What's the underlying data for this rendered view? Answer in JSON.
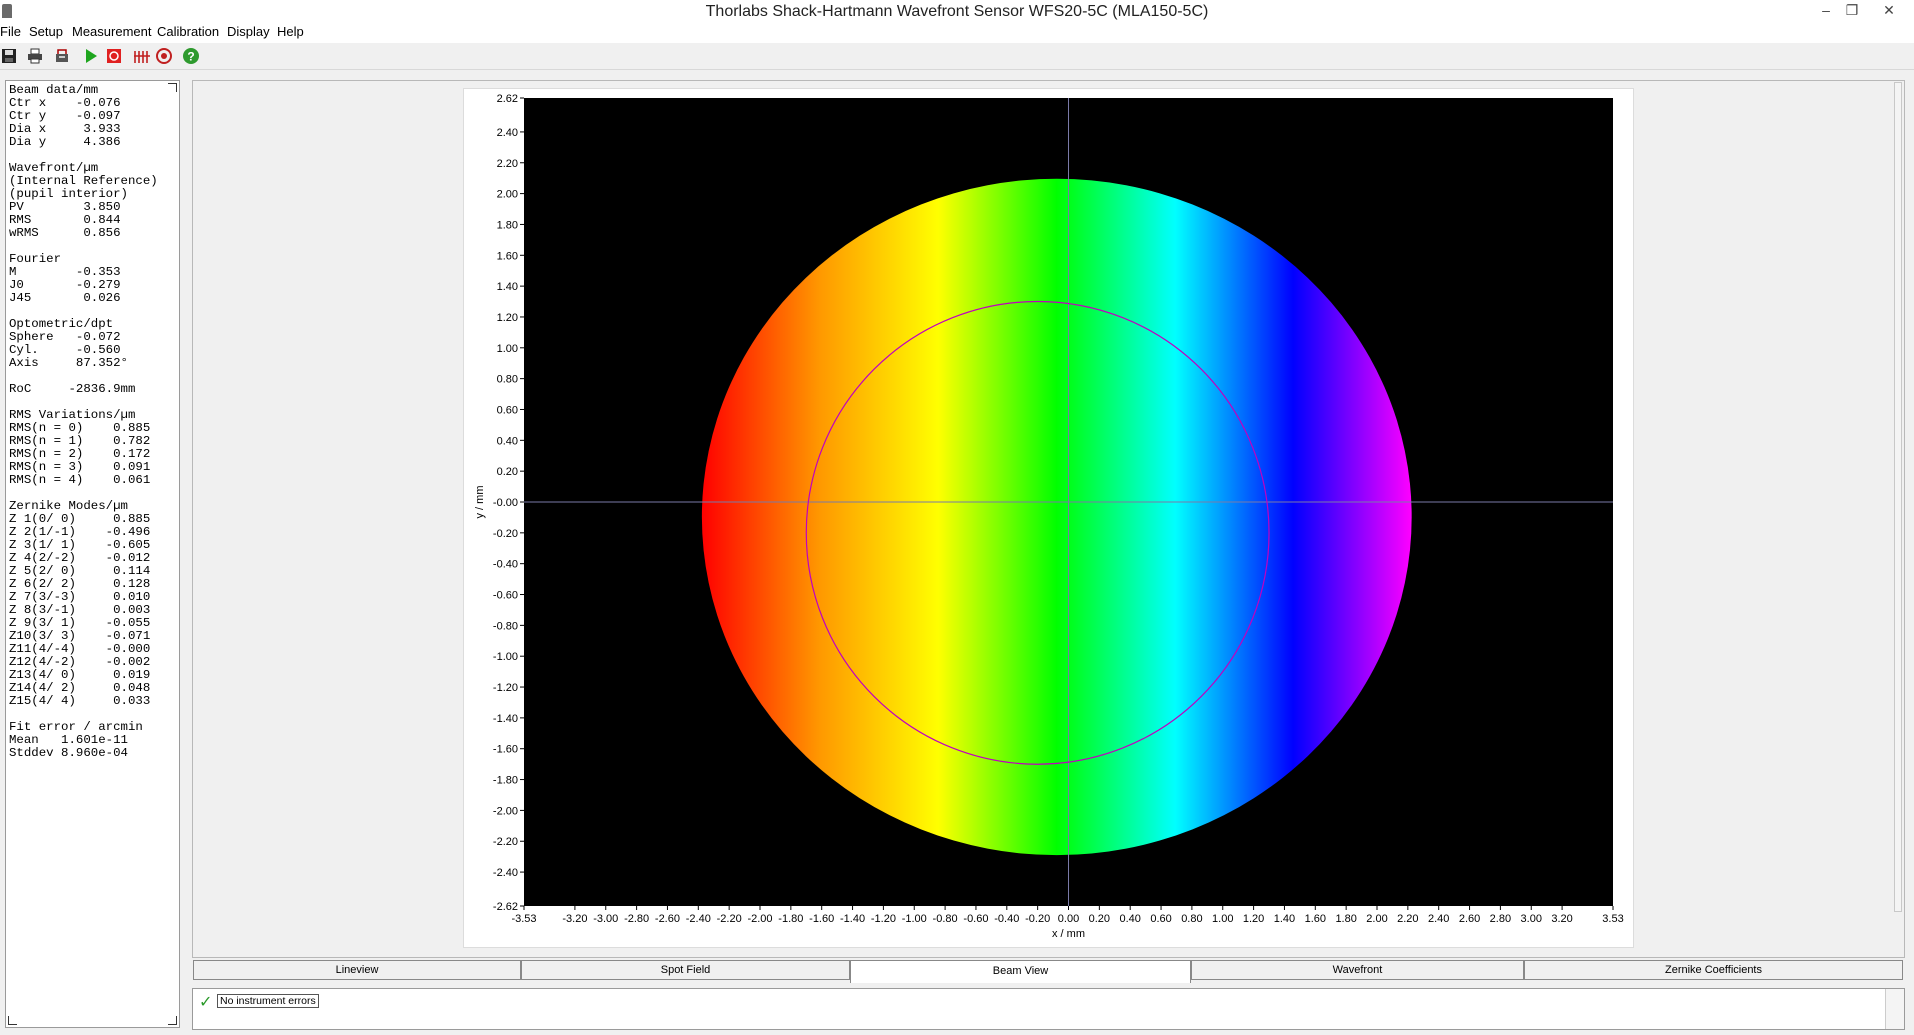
{
  "window": {
    "title": "Thorlabs Shack-Hartmann Wavefront Sensor WFS20-5C (MLA150-5C)",
    "minimize_glyph": "–",
    "restore_glyph": "❐",
    "close_glyph": "✕"
  },
  "menu": [
    "File",
    "Setup",
    "Measurement",
    "Calibration",
    "Display",
    "Help"
  ],
  "toolbar": [
    "save-icon",
    "print-icon",
    "print-setup-icon",
    "start-icon",
    "stop-icon",
    "measure-icon",
    "target-icon",
    "help-icon"
  ],
  "info_text": "Beam data/mm\nCtr x    -0.076\nCtr y    -0.097\nDia x     3.933\nDia y     4.386\n\nWavefront/µm\n(Internal Reference)\n(pupil interior)\nPV        3.850\nRMS       0.844\nwRMS      0.856\n\nFourier\nM        -0.353\nJ0       -0.279\nJ45       0.026\n\nOptometric/dpt\nSphere   -0.072\nCyl.     -0.560\nAxis     87.352°\n\nRoC     -2836.9mm\n\nRMS Variations/µm\nRMS(n = 0)    0.885\nRMS(n = 1)    0.782\nRMS(n = 2)    0.172\nRMS(n = 3)    0.091\nRMS(n = 4)    0.061\n\nZernike Modes/µm\nZ 1(0/ 0)     0.885\nZ 2(1/-1)    -0.496\nZ 3(1/ 1)    -0.605\nZ 4(2/-2)    -0.012\nZ 5(2/ 0)     0.114\nZ 6(2/ 2)     0.128\nZ 7(3/-3)     0.010\nZ 8(3/-1)     0.003\nZ 9(3/ 1)    -0.055\nZ10(3/ 3)    -0.071\nZ11(4/-4)    -0.000\nZ12(4/-2)    -0.002\nZ13(4/ 0)     0.019\nZ14(4/ 2)     0.048\nZ15(4/ 4)     0.033\n\nFit error / arcmin\nMean   1.601e-11\nStddev 8.960e-04",
  "chart_data": {
    "type": "heatmap",
    "title": "",
    "xlabel": "x / mm",
    "ylabel": "y / mm",
    "xlim": [
      -3.53,
      3.53
    ],
    "ylim": [
      -2.62,
      2.62
    ],
    "xticks": [
      "-3.53",
      "-3.20",
      "-3.00",
      "-2.80",
      "-2.60",
      "-2.40",
      "-2.20",
      "-2.00",
      "-1.80",
      "-1.60",
      "-1.40",
      "-1.20",
      "-1.00",
      "-0.80",
      "-0.60",
      "-0.40",
      "-0.20",
      "0.00",
      "0.20",
      "0.40",
      "0.60",
      "0.80",
      "1.00",
      "1.20",
      "1.40",
      "1.60",
      "1.80",
      "2.00",
      "2.20",
      "2.40",
      "2.60",
      "2.80",
      "3.00",
      "3.20",
      "3.53"
    ],
    "yticks": [
      "2.62",
      "2.40",
      "2.20",
      "2.00",
      "1.80",
      "1.60",
      "1.40",
      "1.20",
      "1.00",
      "0.80",
      "0.60",
      "0.40",
      "0.20",
      "-0.00",
      "-0.20",
      "-0.40",
      "-0.60",
      "-0.80",
      "-1.00",
      "-1.20",
      "-1.40",
      "-1.60",
      "-1.80",
      "-2.00",
      "-2.20",
      "-2.40",
      "-2.62"
    ],
    "beam_center": [
      -0.076,
      -0.097
    ],
    "beam_diameter": [
      3.933,
      4.386
    ],
    "pupil_center": [
      -0.2,
      -0.2
    ],
    "pupil_diameter": 3.0,
    "colormap": [
      "#ff0000",
      "#ff9900",
      "#ffff00",
      "#00ff00",
      "#00ffff",
      "#0000ff",
      "#ff00ff"
    ],
    "background_color": "#000000",
    "crosshair_color": "#7a7aa8",
    "pupil_color": "#c000c0"
  },
  "tabs": [
    {
      "label": "Lineview",
      "active": false
    },
    {
      "label": "Spot Field",
      "active": false
    },
    {
      "label": "Beam View",
      "active": true
    },
    {
      "label": "Wavefront",
      "active": false
    },
    {
      "label": "Zernike Coefficients",
      "active": false
    }
  ],
  "status": {
    "icon": "checkmark-icon",
    "message": "No instrument errors"
  }
}
